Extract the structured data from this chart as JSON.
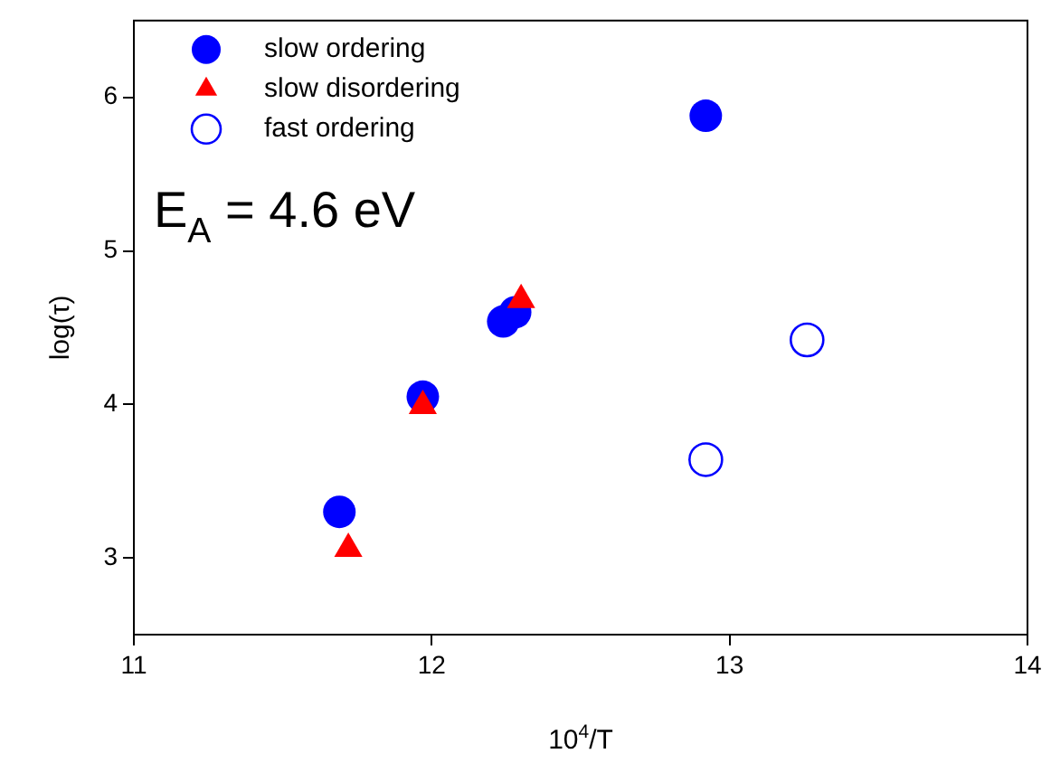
{
  "chart_data": {
    "type": "scatter",
    "xlabel": "10$^{4}$/T",
    "ylabel": "log(τ)",
    "xlim": [
      11,
      14
    ],
    "xticks": [
      11,
      12,
      13,
      14
    ],
    "ylim": [
      2.5,
      6.5
    ],
    "yticks": [
      3,
      4,
      5,
      6
    ],
    "grid": false,
    "legend": "top left",
    "annotations": [
      "E$_{A}$ = 4.6 eV"
    ],
    "series": [
      {
        "name": "slow ordering",
        "color": "#0000ff",
        "marker": "circle",
        "x": [
          11.69,
          11.97,
          12.24,
          12.28,
          12.92
        ],
        "values": [
          3.3,
          4.05,
          4.54,
          4.6,
          5.88
        ]
      },
      {
        "name": "slow disordering",
        "color": "#ff0000",
        "marker": "triangle",
        "x": [
          11.72,
          11.97,
          12.3
        ],
        "values": [
          3.06,
          3.99,
          4.68
        ]
      },
      {
        "name": "fast ordering",
        "color": "#0000ff",
        "marker": "open circle",
        "x": [
          12.92,
          13.26
        ],
        "values": [
          3.64,
          4.42
        ]
      }
    ]
  }
}
